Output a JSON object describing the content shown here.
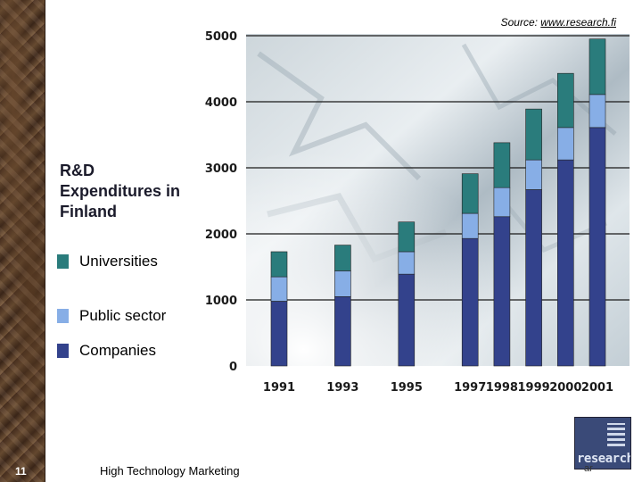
{
  "header": {
    "source_prefix": "Source: ",
    "source_link": "www.research.fi"
  },
  "title": "R&D\nExpenditures in\nFinland",
  "legend": [
    {
      "label": "Universities",
      "color": "#2a7c7c"
    },
    {
      "label": "Public sector",
      "color": "#87aee6"
    },
    {
      "label": "Companies",
      "color": "#33428c"
    }
  ],
  "footer": {
    "page_number": "11",
    "text": "High Technology Marketing",
    "tag": "ar"
  },
  "logo": {
    "text": "research"
  },
  "chart_data": {
    "type": "bar",
    "stacked": true,
    "categories": [
      "1991",
      "1993",
      "1995",
      "1997",
      "1998",
      "1999",
      "2000",
      "2001"
    ],
    "series": [
      {
        "name": "Companies",
        "values": [
          980,
          1050,
          1390,
          1930,
          2260,
          2670,
          3120,
          3610
        ],
        "color": "#33428c"
      },
      {
        "name": "Public sector",
        "values": [
          370,
          390,
          340,
          380,
          440,
          450,
          490,
          500
        ],
        "color": "#87aee6"
      },
      {
        "name": "Universities",
        "values": [
          380,
          390,
          450,
          600,
          680,
          770,
          820,
          840
        ],
        "color": "#2a7c7c"
      }
    ],
    "x_years": [
      1991,
      1993,
      1995,
      1997,
      1998,
      1999,
      2000,
      2001
    ],
    "yticks": [
      0,
      1000,
      2000,
      3000,
      4000,
      5000
    ],
    "ylim": [
      0,
      5000
    ],
    "grid": true
  }
}
